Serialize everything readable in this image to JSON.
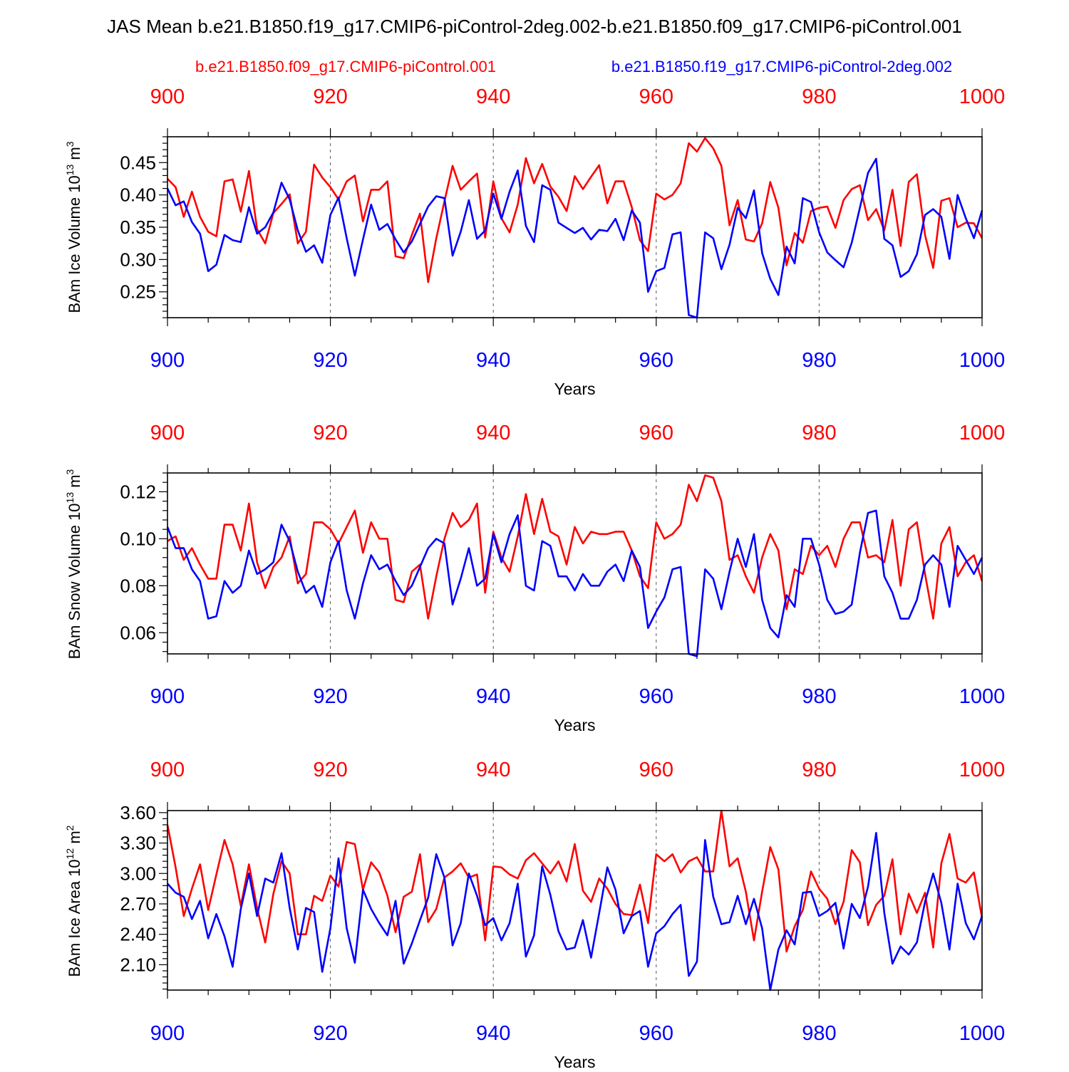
{
  "title": "JAS Mean b.e21.B1850.f19_g17.CMIP6-piControl-2deg.002-b.e21.B1850.f09_g17.CMIP6-piControl.001",
  "legend": {
    "red_label": "b.e21.B1850.f09_g17.CMIP6-piControl.001",
    "blue_label": "b.e21.B1850.f19_g17.CMIP6-piControl-2deg.002"
  },
  "colors": {
    "red": "#ff0000",
    "blue": "#0000ff",
    "axis": "#000000"
  },
  "chart_data": [
    {
      "type": "line",
      "ylabel": "BAm Ice Volume",
      "ylabel_units": "10^13 m^3",
      "xlabel": "Years",
      "xlim": [
        900,
        1000
      ],
      "ylim": [
        0.21,
        0.49
      ],
      "xticks": [
        900,
        920,
        940,
        960,
        980,
        1000
      ],
      "xtick_labels": [
        "900",
        "920",
        "940",
        "960",
        "980",
        "1000"
      ],
      "yticks": [
        0.25,
        0.3,
        0.35,
        0.4,
        0.45
      ],
      "ytick_labels": [
        "0.25",
        "0.30",
        "0.35",
        "0.40",
        "0.45"
      ],
      "x_start": 900,
      "series": [
        {
          "name": "b.e21.B1850.f09_g17.CMIP6-piControl.001",
          "color": "#ff0000",
          "values": [
            0.425,
            0.412,
            0.366,
            0.405,
            0.366,
            0.343,
            0.336,
            0.421,
            0.424,
            0.374,
            0.437,
            0.347,
            0.325,
            0.372,
            0.386,
            0.401,
            0.325,
            0.343,
            0.447,
            0.427,
            0.412,
            0.393,
            0.421,
            0.43,
            0.359,
            0.408,
            0.408,
            0.421,
            0.305,
            0.302,
            0.338,
            0.371,
            0.265,
            0.333,
            0.39,
            0.445,
            0.408,
            0.421,
            0.433,
            0.334,
            0.421,
            0.364,
            0.342,
            0.385,
            0.457,
            0.418,
            0.448,
            0.413,
            0.397,
            0.375,
            0.429,
            0.409,
            0.428,
            0.446,
            0.387,
            0.421,
            0.421,
            0.381,
            0.33,
            0.313,
            0.402,
            0.393,
            0.4,
            0.418,
            0.48,
            0.467,
            0.488,
            0.472,
            0.445,
            0.353,
            0.392,
            0.331,
            0.328,
            0.356,
            0.42,
            0.38,
            0.291,
            0.341,
            0.326,
            0.375,
            0.38,
            0.382,
            0.349,
            0.392,
            0.409,
            0.415,
            0.361,
            0.378,
            0.345,
            0.408,
            0.321,
            0.42,
            0.432,
            0.338,
            0.287,
            0.391,
            0.395,
            0.35,
            0.357,
            0.356,
            0.333
          ]
        },
        {
          "name": "b.e21.B1850.f19_g17.CMIP6-piControl-2deg.002",
          "color": "#0000ff",
          "values": [
            0.41,
            0.384,
            0.39,
            0.358,
            0.34,
            0.282,
            0.292,
            0.338,
            0.33,
            0.327,
            0.381,
            0.34,
            0.35,
            0.373,
            0.419,
            0.393,
            0.345,
            0.312,
            0.322,
            0.295,
            0.369,
            0.396,
            0.333,
            0.275,
            0.331,
            0.385,
            0.346,
            0.355,
            0.331,
            0.311,
            0.328,
            0.355,
            0.382,
            0.398,
            0.395,
            0.306,
            0.343,
            0.392,
            0.332,
            0.345,
            0.402,
            0.363,
            0.405,
            0.438,
            0.352,
            0.327,
            0.415,
            0.408,
            0.357,
            0.349,
            0.341,
            0.349,
            0.331,
            0.346,
            0.344,
            0.363,
            0.33,
            0.376,
            0.357,
            0.25,
            0.282,
            0.287,
            0.339,
            0.342,
            0.214,
            0.21,
            0.342,
            0.333,
            0.285,
            0.323,
            0.38,
            0.364,
            0.407,
            0.31,
            0.27,
            0.245,
            0.32,
            0.294,
            0.395,
            0.389,
            0.342,
            0.311,
            0.299,
            0.288,
            0.326,
            0.38,
            0.434,
            0.456,
            0.332,
            0.322,
            0.273,
            0.282,
            0.308,
            0.369,
            0.378,
            0.366,
            0.301,
            0.4,
            0.364,
            0.333,
            0.376
          ]
        }
      ]
    },
    {
      "type": "line",
      "ylabel": "BAm Snow Volume",
      "ylabel_units": "10^13 m^3",
      "xlabel": "Years",
      "xlim": [
        900,
        1000
      ],
      "ylim": [
        0.051,
        0.128
      ],
      "xticks": [
        900,
        920,
        940,
        960,
        980,
        1000
      ],
      "xtick_labels": [
        "900",
        "920",
        "940",
        "960",
        "980",
        "1000"
      ],
      "yticks": [
        0.06,
        0.08,
        0.1,
        0.12
      ],
      "ytick_labels": [
        "0.06",
        "0.08",
        "0.10",
        "0.12"
      ],
      "x_start": 900,
      "series": [
        {
          "name": "b.e21.B1850.f09_g17.CMIP6-piControl.001",
          "color": "#ff0000",
          "values": [
            0.099,
            0.101,
            0.091,
            0.096,
            0.089,
            0.083,
            0.083,
            0.106,
            0.106,
            0.095,
            0.115,
            0.09,
            0.079,
            0.088,
            0.092,
            0.101,
            0.081,
            0.085,
            0.107,
            0.107,
            0.104,
            0.098,
            0.105,
            0.112,
            0.094,
            0.107,
            0.1,
            0.1,
            0.074,
            0.073,
            0.086,
            0.089,
            0.066,
            0.084,
            0.1,
            0.111,
            0.105,
            0.108,
            0.115,
            0.077,
            0.103,
            0.092,
            0.086,
            0.101,
            0.119,
            0.102,
            0.117,
            0.103,
            0.101,
            0.089,
            0.105,
            0.098,
            0.103,
            0.102,
            0.102,
            0.103,
            0.103,
            0.095,
            0.084,
            0.079,
            0.107,
            0.1,
            0.102,
            0.106,
            0.123,
            0.116,
            0.127,
            0.126,
            0.116,
            0.091,
            0.093,
            0.084,
            0.077,
            0.092,
            0.102,
            0.095,
            0.07,
            0.087,
            0.085,
            0.097,
            0.093,
            0.097,
            0.088,
            0.1,
            0.107,
            0.107,
            0.092,
            0.093,
            0.09,
            0.108,
            0.08,
            0.104,
            0.107,
            0.085,
            0.066,
            0.098,
            0.105,
            0.084,
            0.09,
            0.093,
            0.082
          ]
        },
        {
          "name": "b.e21.B1850.f19_g17.CMIP6-piControl-2deg.002",
          "color": "#0000ff",
          "values": [
            0.105,
            0.096,
            0.096,
            0.087,
            0.082,
            0.066,
            0.067,
            0.082,
            0.077,
            0.08,
            0.095,
            0.085,
            0.087,
            0.09,
            0.106,
            0.099,
            0.086,
            0.077,
            0.08,
            0.071,
            0.09,
            0.099,
            0.078,
            0.066,
            0.081,
            0.093,
            0.087,
            0.089,
            0.082,
            0.076,
            0.08,
            0.088,
            0.096,
            0.1,
            0.098,
            0.072,
            0.083,
            0.096,
            0.08,
            0.083,
            0.102,
            0.09,
            0.102,
            0.11,
            0.08,
            0.078,
            0.099,
            0.097,
            0.084,
            0.084,
            0.078,
            0.085,
            0.08,
            0.08,
            0.086,
            0.089,
            0.082,
            0.095,
            0.088,
            0.062,
            0.069,
            0.075,
            0.087,
            0.088,
            0.051,
            0.05,
            0.087,
            0.083,
            0.07,
            0.086,
            0.1,
            0.088,
            0.102,
            0.074,
            0.062,
            0.058,
            0.076,
            0.071,
            0.1,
            0.1,
            0.089,
            0.074,
            0.068,
            0.069,
            0.072,
            0.094,
            0.111,
            0.112,
            0.084,
            0.077,
            0.066,
            0.066,
            0.074,
            0.089,
            0.093,
            0.089,
            0.071,
            0.097,
            0.091,
            0.085,
            0.092
          ]
        }
      ]
    },
    {
      "type": "line",
      "ylabel": "BAm Ice Area",
      "ylabel_units": "10^12 m^2",
      "xlabel": "Years",
      "xlim": [
        900,
        1000
      ],
      "ylim": [
        1.85,
        3.62
      ],
      "xticks": [
        900,
        920,
        940,
        960,
        980,
        1000
      ],
      "xtick_labels": [
        "900",
        "920",
        "940",
        "960",
        "980",
        "1000"
      ],
      "yticks": [
        2.1,
        2.4,
        2.7,
        3.0,
        3.3,
        3.6
      ],
      "ytick_labels": [
        "2.10",
        "2.40",
        "2.70",
        "3.00",
        "3.30",
        "3.60"
      ],
      "x_start": 900,
      "series": [
        {
          "name": "b.e21.B1850.f09_g17.CMIP6-piControl.001",
          "color": "#ff0000",
          "values": [
            3.48,
            3.06,
            2.58,
            2.85,
            3.09,
            2.64,
            2.99,
            3.33,
            3.09,
            2.68,
            3.09,
            2.66,
            2.32,
            2.8,
            3.12,
            3.0,
            2.4,
            2.4,
            2.78,
            2.73,
            2.98,
            2.87,
            3.31,
            3.29,
            2.84,
            3.11,
            3.01,
            2.78,
            2.42,
            2.77,
            2.82,
            3.19,
            2.52,
            2.65,
            2.96,
            3.02,
            3.1,
            2.96,
            2.99,
            2.34,
            3.07,
            3.06,
            2.99,
            2.95,
            3.13,
            3.2,
            3.1,
            3.0,
            3.12,
            2.92,
            3.29,
            2.83,
            2.72,
            2.95,
            2.85,
            2.7,
            2.6,
            2.59,
            2.89,
            2.51,
            3.19,
            3.12,
            3.19,
            3.01,
            3.12,
            3.16,
            3.02,
            3.02,
            3.62,
            3.07,
            3.15,
            2.82,
            2.34,
            2.82,
            3.26,
            3.04,
            2.23,
            2.48,
            2.64,
            3.02,
            2.85,
            2.75,
            2.5,
            2.72,
            3.23,
            3.11,
            2.49,
            2.69,
            2.78,
            3.14,
            2.4,
            2.8,
            2.61,
            2.81,
            2.27,
            3.1,
            3.39,
            2.95,
            2.91,
            3.01,
            2.56
          ]
        },
        {
          "name": "b.e21.B1850.f19_g17.CMIP6-piControl-2deg.002",
          "color": "#0000ff",
          "values": [
            2.9,
            2.81,
            2.77,
            2.55,
            2.73,
            2.36,
            2.6,
            2.38,
            2.08,
            2.65,
            3.0,
            2.58,
            2.95,
            2.91,
            3.2,
            2.66,
            2.25,
            2.66,
            2.62,
            2.03,
            2.46,
            3.15,
            2.46,
            2.12,
            2.84,
            2.65,
            2.51,
            2.39,
            2.73,
            2.11,
            2.31,
            2.54,
            2.76,
            3.19,
            2.96,
            2.29,
            2.51,
            3.0,
            2.78,
            2.49,
            2.56,
            2.34,
            2.51,
            2.9,
            2.18,
            2.39,
            3.07,
            2.79,
            2.43,
            2.25,
            2.27,
            2.54,
            2.17,
            2.61,
            3.06,
            2.84,
            2.41,
            2.58,
            2.63,
            2.08,
            2.41,
            2.48,
            2.6,
            2.69,
            1.99,
            2.13,
            3.33,
            2.77,
            2.5,
            2.52,
            2.78,
            2.5,
            2.75,
            2.46,
            1.85,
            2.25,
            2.44,
            2.3,
            2.81,
            2.82,
            2.58,
            2.63,
            2.71,
            2.26,
            2.7,
            2.56,
            2.87,
            3.4,
            2.61,
            2.11,
            2.28,
            2.2,
            2.32,
            2.72,
            3.0,
            2.71,
            2.25,
            2.9,
            2.51,
            2.35,
            2.58
          ]
        }
      ]
    }
  ]
}
